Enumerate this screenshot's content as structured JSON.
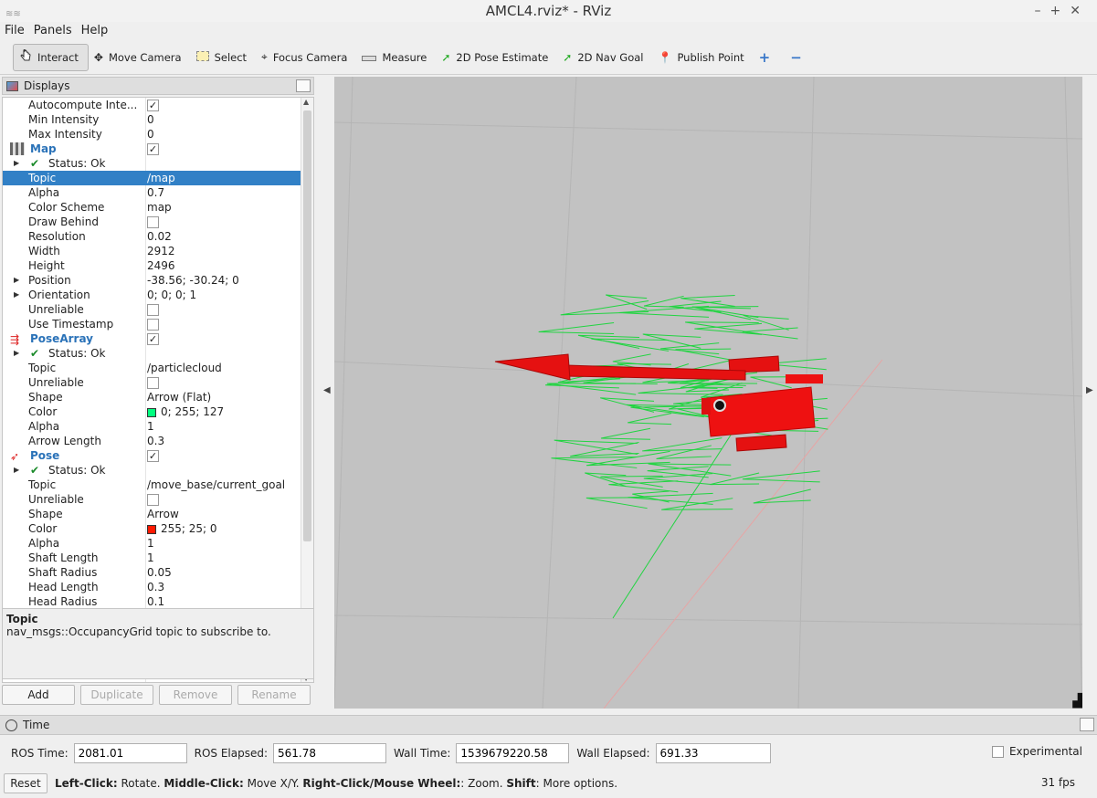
{
  "window": {
    "title": "AMCL4.rviz* - RViz"
  },
  "menu": [
    "File",
    "Panels",
    "Help"
  ],
  "toolbar": {
    "tools": [
      {
        "label": "Interact",
        "icon": "interact-icon",
        "active": true
      },
      {
        "label": "Move Camera",
        "icon": "move-camera-icon"
      },
      {
        "label": "Select",
        "icon": "select-icon"
      },
      {
        "label": "Focus Camera",
        "icon": "focus-camera-icon"
      },
      {
        "label": "Measure",
        "icon": "measure-icon"
      },
      {
        "label": "2D Pose Estimate",
        "icon": "pose-estimate-icon"
      },
      {
        "label": "2D Nav Goal",
        "icon": "nav-goal-icon"
      },
      {
        "label": "Publish Point",
        "icon": "publish-point-icon"
      }
    ]
  },
  "displays": {
    "title": "Displays",
    "rows": [
      {
        "name": "Autocompute Inte...",
        "value": "",
        "check": true
      },
      {
        "name": "Min Intensity",
        "value": "0"
      },
      {
        "name": "Max Intensity",
        "value": "0"
      },
      {
        "name": "Map",
        "value": "",
        "check": true,
        "group": true,
        "icon": "map-icon"
      },
      {
        "name": "Status: Ok",
        "value": "",
        "status": true
      },
      {
        "name": "Topic",
        "value": "/map",
        "selected": true
      },
      {
        "name": "Alpha",
        "value": "0.7"
      },
      {
        "name": "Color Scheme",
        "value": "map"
      },
      {
        "name": "Draw Behind",
        "value": "",
        "check": false
      },
      {
        "name": "Resolution",
        "value": "0.02"
      },
      {
        "name": "Width",
        "value": "2912"
      },
      {
        "name": "Height",
        "value": "2496"
      },
      {
        "name": "Position",
        "value": "-38.56; -30.24; 0",
        "expand": true
      },
      {
        "name": "Orientation",
        "value": "0; 0; 0; 1",
        "expand": true
      },
      {
        "name": "Unreliable",
        "value": "",
        "check": false
      },
      {
        "name": "Use Timestamp",
        "value": "",
        "check": false
      },
      {
        "name": "PoseArray",
        "value": "",
        "check": true,
        "group": true,
        "icon": "posearray-icon"
      },
      {
        "name": "Status: Ok",
        "value": "",
        "status": true
      },
      {
        "name": "Topic",
        "value": "/particlecloud"
      },
      {
        "name": "Unreliable",
        "value": "",
        "check": false
      },
      {
        "name": "Shape",
        "value": "Arrow (Flat)"
      },
      {
        "name": "Color",
        "value": "0; 255; 127",
        "swatch": "#00ff7f"
      },
      {
        "name": "Alpha",
        "value": "1"
      },
      {
        "name": "Arrow Length",
        "value": "0.3"
      },
      {
        "name": "Pose",
        "value": "",
        "check": true,
        "group": true,
        "icon": "pose-icon"
      },
      {
        "name": "Status: Ok",
        "value": "",
        "status": true
      },
      {
        "name": "Topic",
        "value": "/move_base/current_goal"
      },
      {
        "name": "Unreliable",
        "value": "",
        "check": false
      },
      {
        "name": "Shape",
        "value": "Arrow"
      },
      {
        "name": "Color",
        "value": "255; 25; 0",
        "swatch": "#ff1900"
      },
      {
        "name": "Alpha",
        "value": "1"
      },
      {
        "name": "Shaft Length",
        "value": "1"
      },
      {
        "name": "Shaft Radius",
        "value": "0.05"
      },
      {
        "name": "Head Length",
        "value": "0.3"
      },
      {
        "name": "Head Radius",
        "value": "0.1"
      }
    ]
  },
  "help": {
    "title": "Topic",
    "description": "nav_msgs::OccupancyGrid topic to subscribe to."
  },
  "buttons": {
    "add": "Add",
    "duplicate": "Duplicate",
    "remove": "Remove",
    "rename": "Rename"
  },
  "time": {
    "panel_title": "Time",
    "ros_time_label": "ROS Time:",
    "ros_time": "2081.01",
    "ros_elapsed_label": "ROS Elapsed:",
    "ros_elapsed": "561.78",
    "wall_time_label": "Wall Time:",
    "wall_time": "1539679220.58",
    "wall_elapsed_label": "Wall Elapsed:",
    "wall_elapsed": "691.33",
    "experimental_label": "Experimental"
  },
  "status": {
    "reset_label": "Reset",
    "hint_parts": [
      {
        "b": "Left-Click:",
        "t": " Rotate. "
      },
      {
        "b": "Middle-Click:",
        "t": " Move X/Y. "
      },
      {
        "b": "Right-Click/Mouse Wheel:",
        "t": ": Zoom. "
      },
      {
        "b": "Shift",
        "t": ": More options."
      }
    ],
    "fps": "31 fps"
  },
  "colors": {
    "selection": "#3180c6",
    "group_text": "#2a72b8",
    "robot": "#ee1111",
    "particles": "#00ff7f",
    "viewport_bg": "#c2c2c2"
  }
}
